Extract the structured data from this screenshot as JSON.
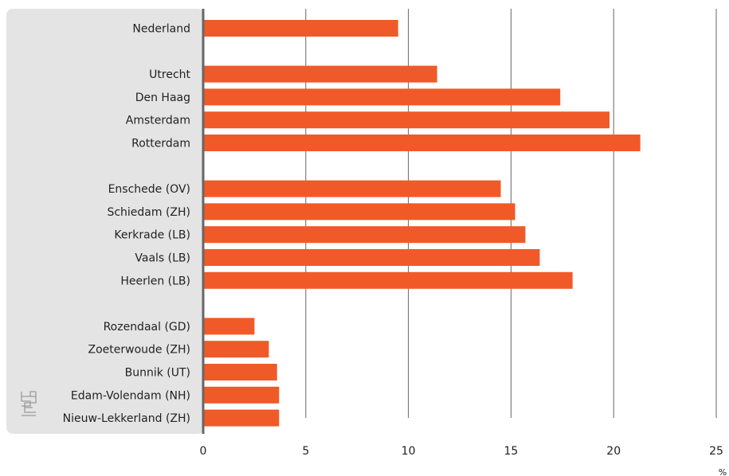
{
  "chart_data": {
    "type": "bar",
    "orientation": "horizontal",
    "categories": [
      "Nederland",
      "Utrecht",
      "Den Haag",
      "Amsterdam",
      "Rotterdam",
      "Enschede (OV)",
      "Schiedam (ZH)",
      "Kerkrade (LB)",
      "Vaals (LB)",
      "Heerlen (LB)",
      "Rozendaal (GD)",
      "Zoeterwoude (ZH)",
      "Bunnik (UT)",
      "Edam-Volendam (NH)",
      "Nieuw-Lekkerland (ZH)"
    ],
    "values": [
      9.5,
      11.4,
      17.4,
      19.8,
      21.3,
      14.5,
      15.2,
      15.7,
      16.4,
      18.0,
      2.5,
      3.2,
      3.6,
      3.7,
      3.7
    ],
    "groups": [
      [
        0
      ],
      [
        1,
        2,
        3,
        4
      ],
      [
        5,
        6,
        7,
        8,
        9
      ],
      [
        10,
        11,
        12,
        13,
        14
      ]
    ],
    "xlim": [
      0,
      25
    ],
    "xticks": [
      0,
      5,
      10,
      15,
      20,
      25
    ],
    "xlabel": "%",
    "grid": true,
    "colors": {
      "bar": "#f05a28",
      "label_panel": "#e4e4e4",
      "grid": "#666666",
      "axis": "#666666",
      "text": "#222222"
    },
    "logo_icon": "cbs-logo-icon"
  }
}
